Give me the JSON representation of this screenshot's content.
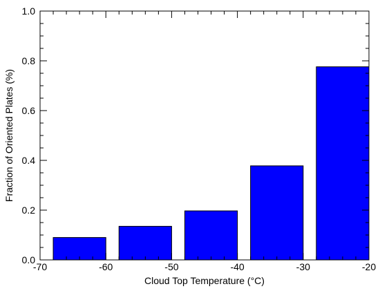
{
  "chart_data": {
    "type": "bar",
    "title": "",
    "xlabel": "Cloud Top Temperature (°C)",
    "ylabel": "Fraction of Oriented Plates (%)",
    "xlim": [
      -70,
      -20
    ],
    "ylim": [
      0,
      1.0
    ],
    "x_ticks": [
      -70,
      -60,
      -50,
      -40,
      -30,
      -20
    ],
    "y_ticks": [
      0.0,
      0.2,
      0.4,
      0.6,
      0.8,
      1.0
    ],
    "x_tick_labels": [
      "-70",
      "-60",
      "-50",
      "-40",
      "-30",
      "-20"
    ],
    "y_tick_labels": [
      "0.0",
      "0.2",
      "0.4",
      "0.6",
      "0.8",
      "1.0"
    ],
    "bars": [
      {
        "x_start": -68,
        "x_end": -60,
        "value": 0.09
      },
      {
        "x_start": -58,
        "x_end": -50,
        "value": 0.135
      },
      {
        "x_start": -48,
        "x_end": -40,
        "value": 0.197
      },
      {
        "x_start": -38,
        "x_end": -30,
        "value": 0.378
      },
      {
        "x_start": -28,
        "x_end": -20,
        "value": 0.776
      }
    ],
    "bar_color": "#0000ff",
    "edge_color": "#000000",
    "grid": false,
    "legend": "none"
  }
}
